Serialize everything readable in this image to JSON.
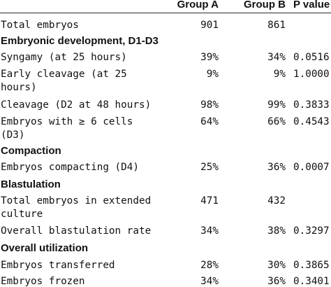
{
  "header": {
    "col_a": "Group A",
    "col_b": "Group B",
    "col_p": "P value"
  },
  "rows": [
    {
      "label": "Total embryos",
      "a": "901",
      "b": "861",
      "p": ""
    },
    {
      "section": "Embryonic development, D1-D3"
    },
    {
      "label": "Syngamy (at 25 hours)",
      "a": "39%",
      "b": "34%",
      "p": "0.0516"
    },
    {
      "label": "Early cleavage (at 25",
      "label2": "hours)",
      "a": "9%",
      "b": "9%",
      "p": "1.0000"
    },
    {
      "label": "Cleavage (D2 at 48 hours)",
      "a": "98%",
      "b": "99%",
      "p": "0.3833"
    },
    {
      "label": "Embryos with ≥ 6 cells",
      "label2": "(D3)",
      "a": "64%",
      "b": "66%",
      "p": "0.4543"
    },
    {
      "section": "Compaction"
    },
    {
      "label": "Embryos compacting (D4)",
      "a": "25%",
      "b": "36%",
      "p": "0.0007"
    },
    {
      "section": "Blastulation"
    },
    {
      "label": "Total embryos in extended",
      "label2": "culture",
      "a": "471",
      "b": "432",
      "p": ""
    },
    {
      "label": "Overall blastulation rate",
      "a": "34%",
      "b": "38%",
      "p": "0.3297"
    },
    {
      "section": "Overall utilization"
    },
    {
      "label": "Embryos transferred",
      "a": "28%",
      "b": "30%",
      "p": "0.3865"
    },
    {
      "label": "Embryos frozen",
      "a": "34%",
      "b": "36%",
      "p": "0.3401"
    }
  ]
}
